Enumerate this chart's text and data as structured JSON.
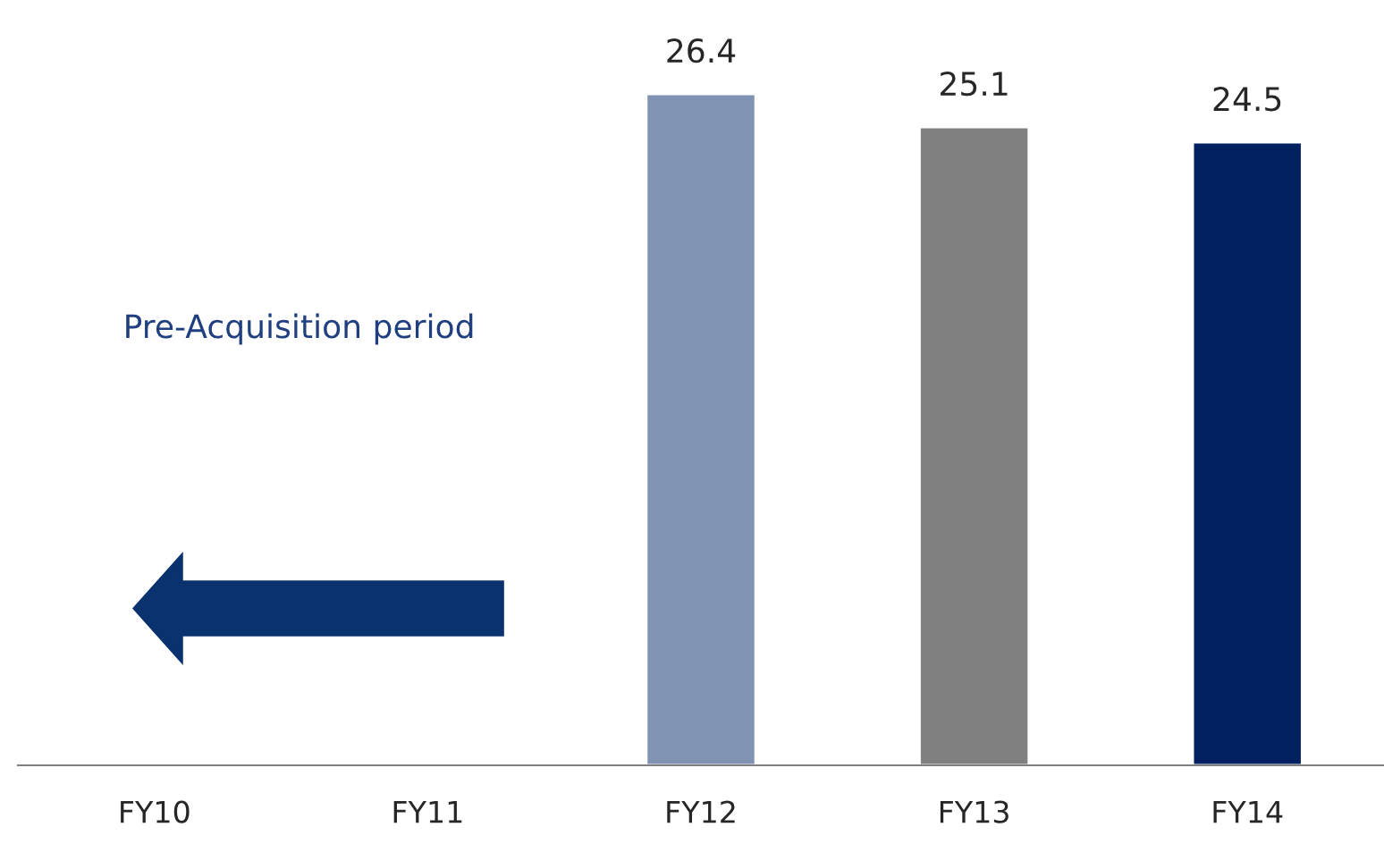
{
  "chart_data": {
    "type": "bar",
    "categories": [
      "FY10",
      "FY11",
      "FY12",
      "FY13",
      "FY14"
    ],
    "values": [
      null,
      null,
      26.4,
      25.1,
      24.5
    ],
    "colors": [
      "#8093b3",
      "#808080",
      "#8093b3",
      "#808080",
      "#002060"
    ],
    "data_labels": true,
    "annotations": [
      "Pre-Acquisition period"
    ]
  }
}
